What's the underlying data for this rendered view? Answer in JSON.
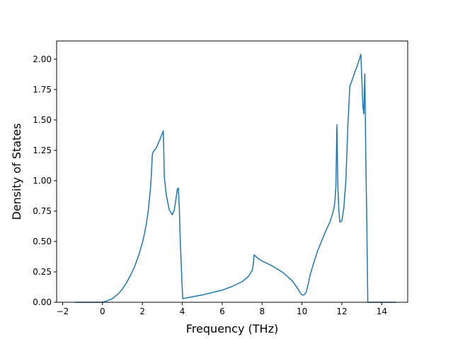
{
  "chart_data": {
    "type": "line",
    "title": "",
    "xlabel": "Frequency (THz)",
    "ylabel": "Density of States",
    "xlim": [
      -2.3,
      15.3
    ],
    "ylim": [
      0,
      2.15
    ],
    "xticks": [
      -2,
      0,
      2,
      4,
      6,
      8,
      10,
      12,
      14
    ],
    "xtick_labels": [
      "−2",
      "0",
      "2",
      "4",
      "6",
      "8",
      "10",
      "12",
      "14"
    ],
    "yticks": [
      0,
      0.25,
      0.5,
      0.75,
      1.0,
      1.25,
      1.5,
      1.75,
      2.0
    ],
    "ytick_labels": [
      "0.00",
      "0.25",
      "0.50",
      "0.75",
      "1.00",
      "1.25",
      "1.50",
      "1.75",
      "2.00"
    ],
    "grid": false,
    "line_color": "#1f77b4",
    "series": [
      {
        "x": [
          -1.35,
          0.0,
          0.2,
          0.5,
          0.8,
          1.0,
          1.2,
          1.4,
          1.6,
          1.8,
          2.0,
          2.1,
          2.2,
          2.3,
          2.4,
          2.45,
          2.5,
          2.55,
          2.7,
          2.9,
          3.0,
          3.05,
          3.1,
          3.2,
          3.35,
          3.5,
          3.6,
          3.7,
          3.75,
          3.8,
          3.85,
          3.9,
          4.0,
          4.02,
          4.5,
          5.0,
          5.5,
          6.0,
          6.5,
          7.0,
          7.3,
          7.5,
          7.55,
          7.6,
          7.8,
          8.0,
          8.5,
          9.0,
          9.5,
          9.8,
          9.9,
          10.0,
          10.1,
          10.2,
          10.3,
          10.4,
          10.6,
          10.8,
          11.0,
          11.2,
          11.4,
          11.5,
          11.6,
          11.65,
          11.7,
          11.75,
          11.8,
          11.85,
          11.9,
          12.0,
          12.1,
          12.2,
          12.3,
          12.4,
          12.5,
          12.6,
          12.8,
          12.95,
          13.0,
          13.05,
          13.1,
          13.15,
          13.2,
          13.25,
          13.3,
          13.35,
          13.45,
          14.7
        ],
        "y": [
          0.0,
          0.0,
          0.01,
          0.03,
          0.07,
          0.11,
          0.16,
          0.22,
          0.29,
          0.38,
          0.49,
          0.56,
          0.65,
          0.76,
          0.93,
          1.05,
          1.22,
          1.24,
          1.27,
          1.35,
          1.39,
          1.41,
          1.03,
          0.88,
          0.76,
          0.72,
          0.76,
          0.87,
          0.93,
          0.94,
          0.78,
          0.5,
          0.1,
          0.03,
          0.045,
          0.06,
          0.08,
          0.1,
          0.13,
          0.17,
          0.21,
          0.26,
          0.3,
          0.39,
          0.36,
          0.34,
          0.3,
          0.25,
          0.18,
          0.11,
          0.08,
          0.06,
          0.06,
          0.08,
          0.14,
          0.22,
          0.33,
          0.43,
          0.51,
          0.59,
          0.66,
          0.71,
          0.77,
          0.83,
          0.95,
          1.46,
          0.95,
          0.75,
          0.66,
          0.67,
          0.78,
          1.0,
          1.45,
          1.78,
          1.82,
          1.87,
          1.96,
          2.04,
          1.85,
          1.62,
          1.55,
          1.88,
          1.2,
          0.65,
          0.0,
          0.0,
          0.0,
          0.0
        ]
      }
    ]
  }
}
